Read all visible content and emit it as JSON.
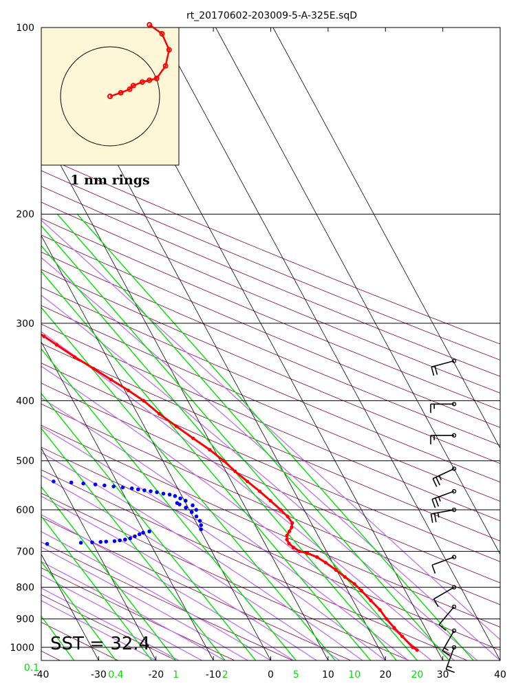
{
  "chart_data": {
    "type": "skew-t",
    "title": "rt_20170602-203009-5-A-325E.sqD",
    "x_range": [
      -40,
      40
    ],
    "p_range": [
      1050,
      100
    ],
    "pressure_ticks": [
      100,
      200,
      300,
      400,
      500,
      600,
      700,
      800,
      900,
      1000
    ],
    "temperature_ticks": [
      -40,
      -30,
      -20,
      -10,
      0,
      10,
      20,
      30,
      40
    ],
    "mixing_ratio_ticks": [
      {
        "label": "0.1",
        "value": 0.1
      },
      {
        "label": "0.4",
        "value": 0.4
      },
      {
        "label": "1",
        "value": 1
      },
      {
        "label": "2",
        "value": 2
      },
      {
        "label": "5",
        "value": 5
      },
      {
        "label": "10",
        "value": 10
      },
      {
        "label": "20",
        "value": 20
      }
    ],
    "sst_label": "SST = 32.4",
    "hodograph_caption": "1 nm rings",
    "temperature_profile": [
      {
        "p": 1010,
        "t": 26.5
      },
      {
        "p": 1000,
        "t": 26
      },
      {
        "p": 960,
        "t": 25.2
      },
      {
        "p": 930,
        "t": 24.6
      },
      {
        "p": 900,
        "t": 24.1
      },
      {
        "p": 870,
        "t": 23.8
      },
      {
        "p": 840,
        "t": 23.1
      },
      {
        "p": 810,
        "t": 22.4
      },
      {
        "p": 790,
        "t": 21.8
      },
      {
        "p": 770,
        "t": 20.8
      },
      {
        "p": 750,
        "t": 19.9
      },
      {
        "p": 730,
        "t": 18.8
      },
      {
        "p": 715,
        "t": 17.8
      },
      {
        "p": 705,
        "t": 16.5
      },
      {
        "p": 700,
        "t": 15.3
      },
      {
        "p": 690,
        "t": 14.6
      },
      {
        "p": 680,
        "t": 14.2
      },
      {
        "p": 670,
        "t": 14.2
      },
      {
        "p": 660,
        "t": 14.6
      },
      {
        "p": 650,
        "t": 15.4
      },
      {
        "p": 640,
        "t": 16.2
      },
      {
        "p": 630,
        "t": 16.7
      },
      {
        "p": 615,
        "t": 16.5
      },
      {
        "p": 600,
        "t": 15.9
      },
      {
        "p": 580,
        "t": 15.0
      },
      {
        "p": 560,
        "t": 14.0
      },
      {
        "p": 540,
        "t": 12.8
      },
      {
        "p": 520,
        "t": 11.6
      },
      {
        "p": 500,
        "t": 10.6
      },
      {
        "p": 480,
        "t": 9.2
      },
      {
        "p": 460,
        "t": 7.4
      },
      {
        "p": 440,
        "t": 5.6
      },
      {
        "p": 420,
        "t": 3.8
      },
      {
        "p": 400,
        "t": 2.3
      },
      {
        "p": 385,
        "t": 0.6
      },
      {
        "p": 370,
        "t": -1.4
      },
      {
        "p": 355,
        "t": -3.4
      },
      {
        "p": 340,
        "t": -5.6
      },
      {
        "p": 325,
        "t": -7.6
      },
      {
        "p": 315,
        "t": -9.0
      },
      {
        "p": 305,
        "t": -10.5
      }
    ],
    "dewpoint_profile": [
      {
        "p": 685,
        "t": -37
      },
      {
        "p": 684,
        "t": -32
      },
      {
        "p": 681,
        "t": -28
      },
      {
        "p": 678,
        "t": -22
      },
      {
        "p": 677,
        "t": -20
      },
      {
        "p": 676,
        "t": -18.5
      },
      {
        "p": 675,
        "t": -17.5
      },
      {
        "p": 674,
        "t": -16
      },
      {
        "p": 672,
        "t": -15
      },
      {
        "p": 670,
        "t": -14
      },
      {
        "p": 667,
        "t": -13
      },
      {
        "p": 662,
        "t": -12
      },
      {
        "p": 657,
        "t": -11
      },
      {
        "p": 653,
        "t": -10.2
      },
      {
        "p": 650,
        "t": -9
      },
      {
        "p": 645,
        "t": 0.2
      },
      {
        "p": 635,
        "t": 0.6
      },
      {
        "p": 625,
        "t": 0.8
      },
      {
        "p": 615,
        "t": 0.6
      },
      {
        "p": 605,
        "t": 0.2
      },
      {
        "p": 595,
        "t": -0.4
      },
      {
        "p": 588,
        "t": -1.2
      },
      {
        "p": 585,
        "t": -1.5
      },
      {
        "p": 600,
        "t": 1.2
      },
      {
        "p": 590,
        "t": 1.0
      },
      {
        "p": 580,
        "t": 0.2
      },
      {
        "p": 575,
        "t": -0.5
      },
      {
        "p": 570,
        "t": -1.2
      },
      {
        "p": 567,
        "t": -2.0
      },
      {
        "p": 565,
        "t": -3.0
      },
      {
        "p": 562,
        "t": -4.0
      },
      {
        "p": 560,
        "t": -5.0
      },
      {
        "p": 558,
        "t": -6.0
      },
      {
        "p": 556,
        "t": -7.0
      },
      {
        "p": 554,
        "t": -8.0
      },
      {
        "p": 552,
        "t": -9.5
      },
      {
        "p": 550,
        "t": -11
      },
      {
        "p": 548,
        "t": -12.5
      },
      {
        "p": 546,
        "t": -14
      },
      {
        "p": 544,
        "t": -16
      },
      {
        "p": 542,
        "t": -18
      },
      {
        "p": 540,
        "t": -21
      },
      {
        "p": 537,
        "t": -25
      },
      {
        "p": 535,
        "t": -30
      }
    ],
    "wind_barbs": [
      {
        "p": 1000,
        "dir": 200,
        "speed": 15
      },
      {
        "p": 940,
        "dir": 210,
        "speed": 15
      },
      {
        "p": 860,
        "dir": 220,
        "speed": 10
      },
      {
        "p": 800,
        "dir": 240,
        "speed": 10
      },
      {
        "p": 715,
        "dir": 250,
        "speed": 10
      },
      {
        "p": 600,
        "dir": 260,
        "speed": 25
      },
      {
        "p": 560,
        "dir": 250,
        "speed": 25
      },
      {
        "p": 515,
        "dir": 245,
        "speed": 25
      },
      {
        "p": 455,
        "dir": 270,
        "speed": 15
      },
      {
        "p": 405,
        "dir": 270,
        "speed": 15
      },
      {
        "p": 345,
        "dir": 255,
        "speed": 20
      }
    ],
    "hodograph": [
      {
        "u": 0.0,
        "v": 0.0
      },
      {
        "u": 0.3,
        "v": 0.1
      },
      {
        "u": 0.55,
        "v": 0.2
      },
      {
        "u": 0.65,
        "v": 0.3
      },
      {
        "u": 0.9,
        "v": 0.4
      },
      {
        "u": 1.1,
        "v": 0.45
      },
      {
        "u": 1.3,
        "v": 0.5
      },
      {
        "u": 1.55,
        "v": 0.85
      },
      {
        "u": 1.65,
        "v": 1.3
      },
      {
        "u": 1.45,
        "v": 1.75
      },
      {
        "u": 1.1,
        "v": 2.0
      }
    ]
  },
  "colors": {
    "temperature": "#ff0000",
    "dewpoint": "#0000ff",
    "isotherm": "#000000",
    "dry_adiabat": "#800040",
    "moist_adiabat": "#c070f0",
    "mixing_ratio": "#00e000",
    "hodograph_bg": "#fdf7d8"
  }
}
